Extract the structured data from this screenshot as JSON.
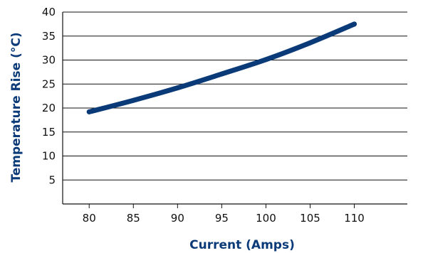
{
  "colors": {
    "line": "#0b3a78",
    "axis_title": "#0b3a78",
    "gridline": "#111111",
    "axis": "#111111"
  },
  "chart_data": {
    "type": "line",
    "xlabel": "Current (Amps)",
    "ylabel": "Temperature Rise (°C)",
    "xlim": [
      77,
      116
    ],
    "ylim": [
      0,
      40
    ],
    "x_ticks": [
      80,
      85,
      90,
      95,
      100,
      105,
      110
    ],
    "y_ticks": [
      5,
      10,
      15,
      20,
      25,
      30,
      35,
      40
    ],
    "grid": "horizontal",
    "series": [
      {
        "x": [
          80,
          85,
          90,
          95,
          100,
          105,
          110
        ],
        "values": [
          19.2,
          21.6,
          24.2,
          27.1,
          30.1,
          33.6,
          37.5
        ]
      }
    ]
  }
}
